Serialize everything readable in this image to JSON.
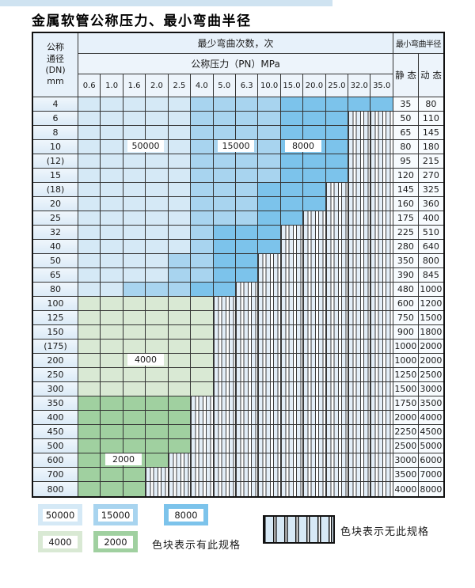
{
  "title": "金属软管公称压力、最小弯曲半径",
  "colors": {
    "blue_50000": "#d5e9f6",
    "blue_15000": "#a8d4ef",
    "blue_8000": "#7cc3eb",
    "green_4000": "#d9e9d4",
    "green_2000": "#a0d0a0",
    "header_fill": "#e7f1fa",
    "top_strip": "#cfe3f1"
  },
  "table": {
    "header": {
      "dn_lines": [
        "公称",
        "通径",
        "(DN)",
        "mm"
      ],
      "bend_cycles_label": "最少弯曲次数，次",
      "pressure_label": "公称压力（PN）MPa",
      "min_radius_label": "最小弯曲半径",
      "static_label": "静 态",
      "dynamic_label": "动 态",
      "pressure_columns": [
        "0.6",
        "1.0",
        "1.6",
        "2.0",
        "2.5",
        "4.0",
        "5.0",
        "6.3",
        "10.0",
        "15.0",
        "20.0",
        "25.0",
        "32.0",
        "35.0"
      ]
    },
    "zone_legend_codes": {
      "L": "50000 cycles (light blue)",
      "M": "15000 cycles (medium blue)",
      "D": "8000 cycles (dark blue)",
      "G": "4000 cycles (light green)",
      "E": "2000 cycles (dark green)",
      "X": "no specification (striped)"
    },
    "rows": [
      {
        "dn": "4",
        "cells": [
          "L",
          "L",
          "L",
          "L",
          "L",
          "M",
          "M",
          "M",
          "M",
          "D",
          "D",
          "D",
          "D",
          "D"
        ],
        "static": "35",
        "dynamic": "80"
      },
      {
        "dn": "6",
        "cells": [
          "L",
          "L",
          "L",
          "L",
          "L",
          "M",
          "M",
          "M",
          "M",
          "D",
          "D",
          "D",
          "X",
          "X"
        ],
        "static": "50",
        "dynamic": "110"
      },
      {
        "dn": "8",
        "cells": [
          "L",
          "L",
          "L",
          "L",
          "L",
          "M",
          "M",
          "M",
          "M",
          "D",
          "D",
          "D",
          "X",
          "X"
        ],
        "static": "65",
        "dynamic": "145"
      },
      {
        "dn": "10",
        "cells": [
          "L",
          "L",
          "L",
          "L",
          "L",
          "M",
          "M",
          "M",
          "M",
          "D",
          "D",
          "D",
          "X",
          "X"
        ],
        "static": "80",
        "dynamic": "180"
      },
      {
        "dn": "(12)",
        "cells": [
          "L",
          "L",
          "L",
          "L",
          "L",
          "M",
          "M",
          "M",
          "M",
          "D",
          "D",
          "D",
          "X",
          "X"
        ],
        "static": "95",
        "dynamic": "215"
      },
      {
        "dn": "15",
        "cells": [
          "L",
          "L",
          "L",
          "L",
          "L",
          "M",
          "M",
          "M",
          "M",
          "D",
          "D",
          "D",
          "X",
          "X"
        ],
        "static": "120",
        "dynamic": "270"
      },
      {
        "dn": "(18)",
        "cells": [
          "L",
          "L",
          "L",
          "L",
          "L",
          "M",
          "M",
          "M",
          "D",
          "D",
          "D",
          "X",
          "X",
          "X"
        ],
        "static": "145",
        "dynamic": "325"
      },
      {
        "dn": "20",
        "cells": [
          "L",
          "L",
          "L",
          "L",
          "L",
          "M",
          "M",
          "M",
          "D",
          "D",
          "D",
          "X",
          "X",
          "X"
        ],
        "static": "160",
        "dynamic": "360"
      },
      {
        "dn": "25",
        "cells": [
          "L",
          "L",
          "L",
          "L",
          "L",
          "M",
          "M",
          "M",
          "D",
          "D",
          "X",
          "X",
          "X",
          "X"
        ],
        "static": "175",
        "dynamic": "400"
      },
      {
        "dn": "32",
        "cells": [
          "L",
          "L",
          "L",
          "L",
          "L",
          "M",
          "D",
          "D",
          "D",
          "X",
          "X",
          "X",
          "X",
          "X"
        ],
        "static": "225",
        "dynamic": "510"
      },
      {
        "dn": "40",
        "cells": [
          "L",
          "L",
          "L",
          "L",
          "L",
          "M",
          "D",
          "D",
          "D",
          "X",
          "X",
          "X",
          "X",
          "X"
        ],
        "static": "280",
        "dynamic": "640"
      },
      {
        "dn": "50",
        "cells": [
          "L",
          "L",
          "L",
          "L",
          "M",
          "M",
          "D",
          "D",
          "X",
          "X",
          "X",
          "X",
          "X",
          "X"
        ],
        "static": "350",
        "dynamic": "800"
      },
      {
        "dn": "65",
        "cells": [
          "L",
          "L",
          "L",
          "L",
          "M",
          "M",
          "D",
          "D",
          "X",
          "X",
          "X",
          "X",
          "X",
          "X"
        ],
        "static": "390",
        "dynamic": "845"
      },
      {
        "dn": "80",
        "cells": [
          "L",
          "L",
          "M",
          "M",
          "M",
          "D",
          "D",
          "X",
          "X",
          "X",
          "X",
          "X",
          "X",
          "X"
        ],
        "static": "480",
        "dynamic": "1000"
      },
      {
        "dn": "100",
        "cells": [
          "G",
          "G",
          "G",
          "G",
          "G",
          "G",
          "X",
          "X",
          "X",
          "X",
          "X",
          "X",
          "X",
          "X"
        ],
        "static": "600",
        "dynamic": "1200"
      },
      {
        "dn": "125",
        "cells": [
          "G",
          "G",
          "G",
          "G",
          "G",
          "G",
          "X",
          "X",
          "X",
          "X",
          "X",
          "X",
          "X",
          "X"
        ],
        "static": "750",
        "dynamic": "1500"
      },
      {
        "dn": "150",
        "cells": [
          "G",
          "G",
          "G",
          "G",
          "G",
          "G",
          "X",
          "X",
          "X",
          "X",
          "X",
          "X",
          "X",
          "X"
        ],
        "static": "900",
        "dynamic": "1800"
      },
      {
        "dn": "(175)",
        "cells": [
          "G",
          "G",
          "G",
          "G",
          "G",
          "G",
          "X",
          "X",
          "X",
          "X",
          "X",
          "X",
          "X",
          "X"
        ],
        "static": "1000",
        "dynamic": "2000"
      },
      {
        "dn": "200",
        "cells": [
          "G",
          "G",
          "G",
          "G",
          "G",
          "G",
          "X",
          "X",
          "X",
          "X",
          "X",
          "X",
          "X",
          "X"
        ],
        "static": "1000",
        "dynamic": "2000"
      },
      {
        "dn": "250",
        "cells": [
          "G",
          "G",
          "G",
          "G",
          "G",
          "G",
          "X",
          "X",
          "X",
          "X",
          "X",
          "X",
          "X",
          "X"
        ],
        "static": "1250",
        "dynamic": "2500"
      },
      {
        "dn": "300",
        "cells": [
          "G",
          "G",
          "G",
          "G",
          "G",
          "G",
          "X",
          "X",
          "X",
          "X",
          "X",
          "X",
          "X",
          "X"
        ],
        "static": "1500",
        "dynamic": "3000"
      },
      {
        "dn": "350",
        "cells": [
          "E",
          "E",
          "E",
          "E",
          "E",
          "X",
          "X",
          "X",
          "X",
          "X",
          "X",
          "X",
          "X",
          "X"
        ],
        "static": "1750",
        "dynamic": "3500"
      },
      {
        "dn": "400",
        "cells": [
          "E",
          "E",
          "E",
          "E",
          "E",
          "X",
          "X",
          "X",
          "X",
          "X",
          "X",
          "X",
          "X",
          "X"
        ],
        "static": "2000",
        "dynamic": "4000"
      },
      {
        "dn": "450",
        "cells": [
          "E",
          "E",
          "E",
          "E",
          "E",
          "X",
          "X",
          "X",
          "X",
          "X",
          "X",
          "X",
          "X",
          "X"
        ],
        "static": "2250",
        "dynamic": "4500"
      },
      {
        "dn": "500",
        "cells": [
          "E",
          "E",
          "E",
          "E",
          "E",
          "X",
          "X",
          "X",
          "X",
          "X",
          "X",
          "X",
          "X",
          "X"
        ],
        "static": "2500",
        "dynamic": "5000"
      },
      {
        "dn": "600",
        "cells": [
          "E",
          "E",
          "E",
          "E",
          "X",
          "X",
          "X",
          "X",
          "X",
          "X",
          "X",
          "X",
          "X",
          "X"
        ],
        "static": "3000",
        "dynamic": "6000"
      },
      {
        "dn": "700",
        "cells": [
          "E",
          "E",
          "E",
          "X",
          "X",
          "X",
          "X",
          "X",
          "X",
          "X",
          "X",
          "X",
          "X",
          "X"
        ],
        "static": "3500",
        "dynamic": "7000"
      },
      {
        "dn": "800",
        "cells": [
          "E",
          "E",
          "E",
          "X",
          "X",
          "X",
          "X",
          "X",
          "X",
          "X",
          "X",
          "X",
          "X",
          "X"
        ],
        "static": "4000",
        "dynamic": "8000"
      }
    ],
    "overlay_labels": [
      {
        "text": "50000",
        "row_index": 3,
        "col_start": 2,
        "col_span": 2
      },
      {
        "text": "15000",
        "row_index": 3,
        "col_start": 6,
        "col_span": 2
      },
      {
        "text": "8000",
        "row_index": 3,
        "col_start": 9,
        "col_span": 2
      },
      {
        "text": "4000",
        "row_index": 18,
        "col_start": 2,
        "col_span": 2
      },
      {
        "text": "2000",
        "row_index": 25,
        "col_start": 1,
        "col_span": 2
      }
    ]
  },
  "legend": {
    "swatches": [
      {
        "label": "50000",
        "color_key": "blue_50000",
        "row": 0,
        "col": 0
      },
      {
        "label": "15000",
        "color_key": "blue_15000",
        "row": 0,
        "col": 1
      },
      {
        "label": "8000",
        "color_key": "blue_8000",
        "row": 0,
        "col": 2
      },
      {
        "label": "4000",
        "color_key": "green_4000",
        "row": 1,
        "col": 0
      },
      {
        "label": "2000",
        "color_key": "green_2000",
        "row": 1,
        "col": 1
      }
    ],
    "has_spec_note": "色块表示有此规格",
    "no_spec_note": "色块表示无此规格"
  }
}
